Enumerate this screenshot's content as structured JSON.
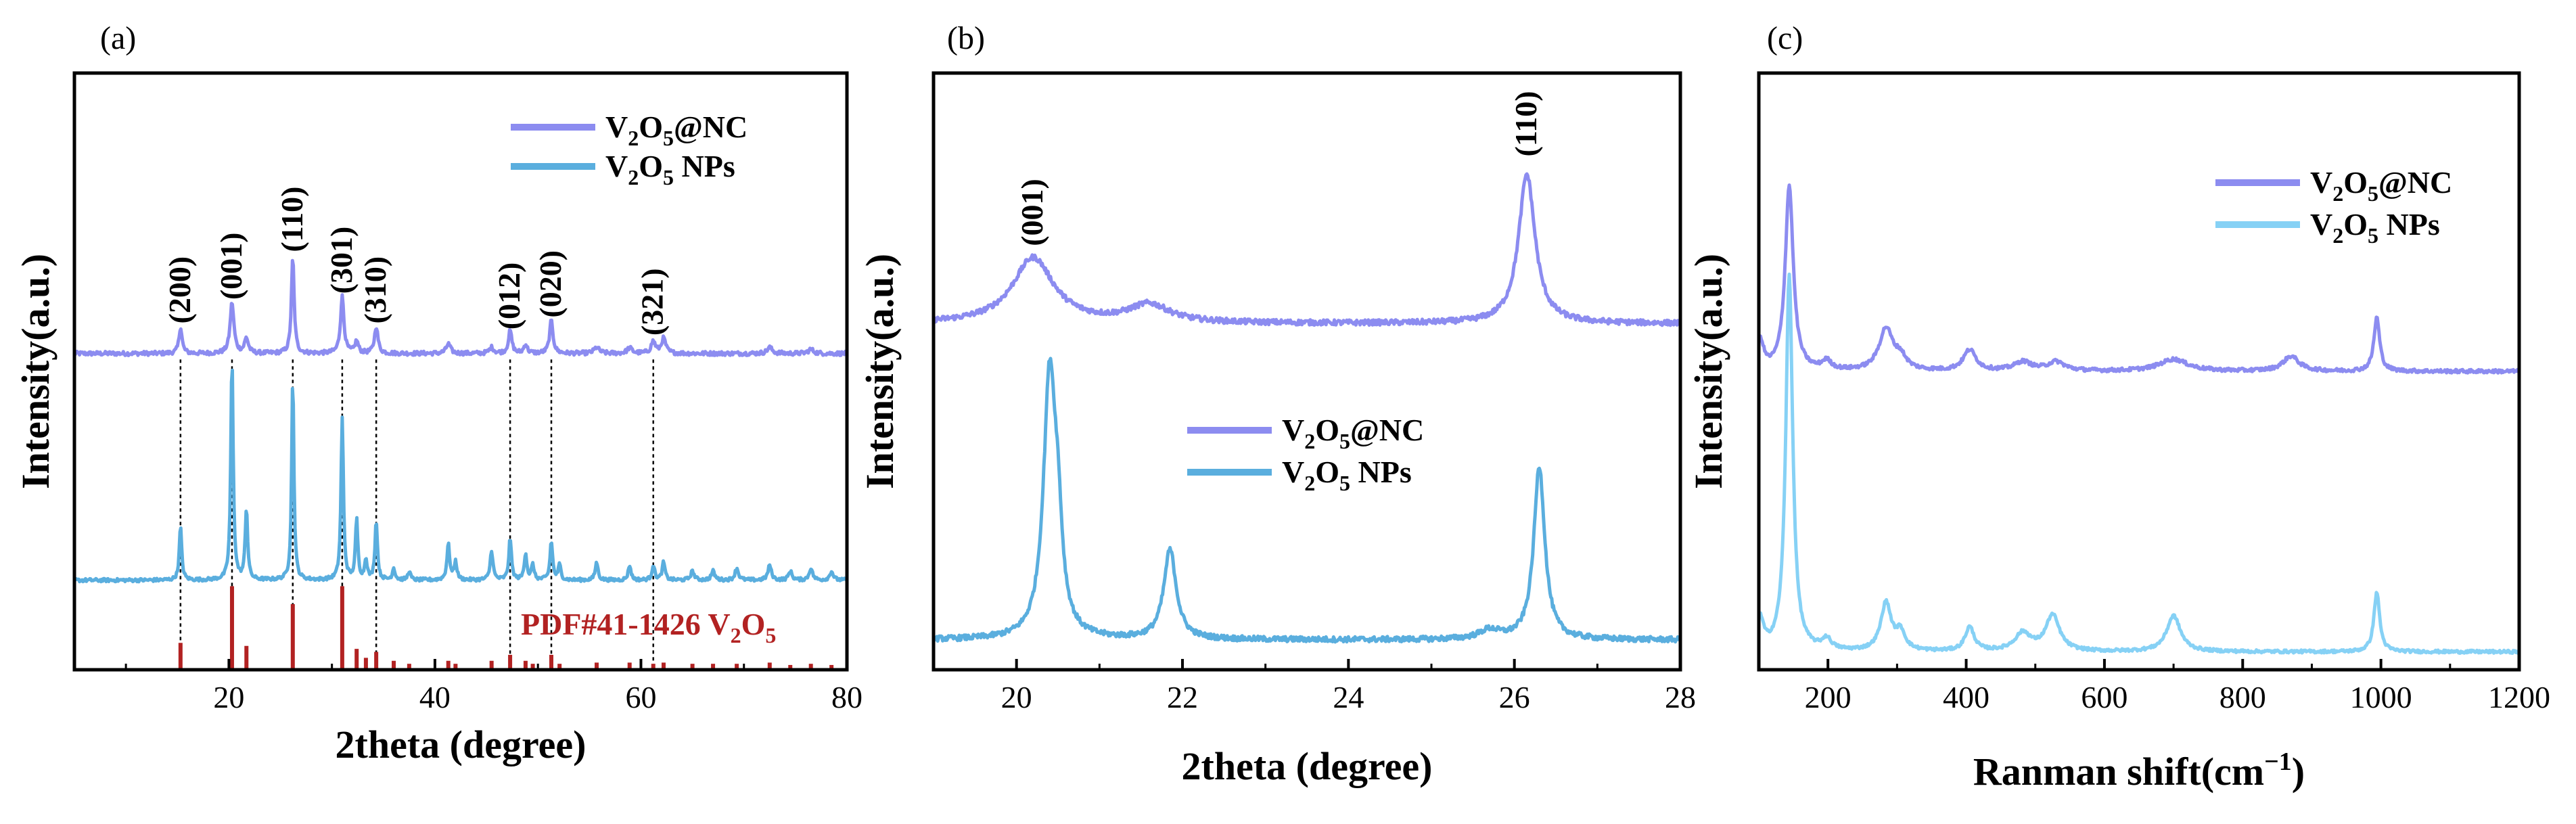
{
  "figure": {
    "panels": [
      "(a)",
      "(b)",
      "(c)"
    ]
  },
  "colors": {
    "nc": "#8c8cf0",
    "nps_a": "#5aaede",
    "nps_b": "#5aaede",
    "nps_c": "#86d1f5",
    "pdf": "#b22222",
    "text": "#000000"
  },
  "chart_data": [
    {
      "type": "line",
      "panel": "(a)",
      "title": "",
      "xlabel": "2theta (degree)",
      "ylabel": "Intensity(a.u.)",
      "xlim": [
        5,
        80
      ],
      "ylim": [
        0,
        100
      ],
      "xticks": [
        20,
        40,
        60,
        80
      ],
      "yticks": "none",
      "series": [
        {
          "name": "V2O5@NC",
          "legend_main": "V",
          "legend_sub1": "2",
          "legend_mid": "O",
          "legend_sub2": "5",
          "legend_end": "@NC",
          "baseline": 53,
          "noise": 0.35,
          "peaks": [
            [
              15.3,
              4.4,
              0.18
            ],
            [
              20.3,
              8.5,
              0.22
            ],
            [
              21.7,
              2.5,
              0.22
            ],
            [
              26.2,
              16.0,
              0.16
            ],
            [
              31.0,
              9.5,
              0.2
            ],
            [
              32.4,
              2.0,
              0.2
            ],
            [
              34.3,
              4.5,
              0.2
            ],
            [
              41.3,
              1.6,
              0.25
            ],
            [
              45.5,
              1.0,
              0.25
            ],
            [
              47.3,
              3.8,
              0.2
            ],
            [
              48.8,
              1.5,
              0.2
            ],
            [
              51.3,
              5.5,
              0.2
            ],
            [
              55.7,
              1.0,
              0.3
            ],
            [
              58.9,
              0.9,
              0.3
            ],
            [
              61.2,
              2.0,
              0.25
            ],
            [
              62.2,
              2.5,
              0.25
            ],
            [
              72.5,
              1.0,
              0.3
            ],
            [
              76.5,
              0.7,
              0.3
            ]
          ]
        },
        {
          "name": "V2O5 NPs",
          "legend_main": "V",
          "legend_sub1": "2",
          "legend_mid": "O",
          "legend_sub2": "5",
          "legend_end": " NPs",
          "baseline": 15,
          "noise": 0.28,
          "peaks": [
            [
              15.3,
              9.0,
              0.14
            ],
            [
              20.3,
              37.0,
              0.14
            ],
            [
              21.7,
              12.0,
              0.14
            ],
            [
              26.2,
              34.0,
              0.13
            ],
            [
              31.0,
              27.0,
              0.14
            ],
            [
              32.4,
              10.0,
              0.14
            ],
            [
              33.3,
              3.5,
              0.14
            ],
            [
              34.3,
              10.0,
              0.14
            ],
            [
              36.0,
              2.0,
              0.15
            ],
            [
              37.5,
              1.5,
              0.15
            ],
            [
              41.3,
              6.0,
              0.16
            ],
            [
              42.0,
              3.0,
              0.16
            ],
            [
              45.5,
              5.0,
              0.16
            ],
            [
              47.3,
              7.0,
              0.15
            ],
            [
              48.8,
              4.5,
              0.15
            ],
            [
              49.5,
              2.5,
              0.15
            ],
            [
              51.3,
              6.5,
              0.15
            ],
            [
              52.1,
              2.5,
              0.15
            ],
            [
              55.7,
              3.0,
              0.16
            ],
            [
              58.9,
              2.5,
              0.16
            ],
            [
              61.2,
              2.5,
              0.16
            ],
            [
              62.2,
              3.0,
              0.16
            ],
            [
              65.0,
              1.5,
              0.2
            ],
            [
              67.0,
              1.5,
              0.2
            ],
            [
              69.3,
              2.0,
              0.2
            ],
            [
              72.5,
              2.5,
              0.2
            ],
            [
              74.5,
              1.5,
              0.2
            ],
            [
              76.5,
              2.0,
              0.2
            ],
            [
              78.5,
              1.5,
              0.2
            ]
          ]
        }
      ],
      "reference": {
        "name": "PDF#41-1426 V2O5",
        "label_main": "PDF#41-1426 V",
        "label_sub1": "2",
        "label_mid": "O",
        "label_sub2": "5",
        "base": 0,
        "sticks": [
          [
            15.3,
            4.5
          ],
          [
            20.3,
            14.0
          ],
          [
            21.7,
            4.0
          ],
          [
            26.2,
            11.0
          ],
          [
            31.0,
            14.0
          ],
          [
            32.4,
            3.5
          ],
          [
            33.3,
            2.0
          ],
          [
            34.3,
            3.0
          ],
          [
            36.0,
            1.5
          ],
          [
            37.5,
            1.0
          ],
          [
            41.3,
            1.5
          ],
          [
            42.0,
            1.0
          ],
          [
            45.5,
            1.5
          ],
          [
            47.3,
            2.5
          ],
          [
            48.8,
            1.5
          ],
          [
            49.5,
            1.0
          ],
          [
            51.3,
            2.5
          ],
          [
            52.1,
            1.0
          ],
          [
            55.7,
            1.2
          ],
          [
            58.9,
            1.2
          ],
          [
            61.2,
            1.0
          ],
          [
            62.2,
            1.2
          ],
          [
            65.0,
            1.0
          ],
          [
            67.0,
            1.0
          ],
          [
            69.3,
            1.0
          ],
          [
            72.5,
            1.2
          ],
          [
            74.5,
            0.8
          ],
          [
            76.5,
            1.0
          ],
          [
            78.5,
            0.8
          ]
        ]
      },
      "peak_labels": [
        {
          "text": "(200)",
          "x": 15.3,
          "y_top": 58
        },
        {
          "text": "(001)",
          "x": 20.3,
          "y_top": 62
        },
        {
          "text": "(110)",
          "x": 26.2,
          "y_top": 70
        },
        {
          "text": "(301)",
          "x": 31.0,
          "y_top": 63
        },
        {
          "text": "(310)",
          "x": 34.3,
          "y_top": 58
        },
        {
          "text": "(012)",
          "x": 47.3,
          "y_top": 57
        },
        {
          "text": "(020)",
          "x": 51.3,
          "y_top": 59
        },
        {
          "text": "(321)",
          "x": 61.2,
          "y_top": 56
        }
      ],
      "dashed_x": [
        15.3,
        20.3,
        26.2,
        31.0,
        34.3,
        47.3,
        51.3,
        61.2
      ],
      "legend_position": "top-right",
      "reference_label_position": "bottom-right"
    },
    {
      "type": "line",
      "panel": "(b)",
      "title": "",
      "xlabel": "2theta (degree)",
      "ylabel": "Intensity(a.u.)",
      "xlim": [
        19,
        28
      ],
      "ylim": [
        0,
        100
      ],
      "xticks": [
        20,
        22,
        24,
        26,
        28
      ],
      "yticks": "none",
      "series": [
        {
          "name": "V2O5@NC",
          "legend_main": "V",
          "legend_sub1": "2",
          "legend_mid": "O",
          "legend_sub2": "5",
          "legend_end": "@NC",
          "baseline": 58,
          "noise": 0.45,
          "peaks": [
            [
              20.2,
              11.0,
              0.3
            ],
            [
              21.6,
              3.0,
              0.3
            ],
            [
              26.15,
              25.0,
              0.12
            ]
          ]
        },
        {
          "name": "V2O5 NPs",
          "legend_main": "V",
          "legend_sub1": "2",
          "legend_mid": "O",
          "legend_sub2": "5",
          "legend_end": " NPs",
          "baseline": 5,
          "noise": 0.45,
          "peaks": [
            [
              20.4,
              44.0,
              0.09
            ],
            [
              20.5,
              12.0,
              0.06
            ],
            [
              21.85,
              15.0,
              0.09
            ],
            [
              25.7,
              1.5,
              0.15
            ],
            [
              26.3,
              29.0,
              0.08
            ]
          ]
        }
      ],
      "peak_labels": [
        {
          "text": "(001)",
          "x": 20.2,
          "y_top": 71
        },
        {
          "text": "(110)",
          "x": 26.15,
          "y_top": 86
        }
      ],
      "legend_position": "center"
    },
    {
      "type": "line",
      "panel": "(c)",
      "title": "",
      "xlabel": "Ranman shift(cm−1)",
      "xlabel_main": "Ranman shift(cm",
      "xlabel_sup": "−1",
      "xlabel_end": ")",
      "ylabel": "Intensity(a.u.)",
      "xlim": [
        100,
        1200
      ],
      "ylim": [
        0,
        100
      ],
      "xticks": [
        200,
        400,
        600,
        800,
        1000,
        1200
      ],
      "yticks": "none",
      "series": [
        {
          "name": "V2O5@NC",
          "legend_main": "V",
          "legend_sub1": "2",
          "legend_mid": "O",
          "legend_sub2": "5",
          "legend_end": "@NC",
          "baseline": 50,
          "noise": 0.3,
          "peaks": [
            [
              102,
              5.0,
              6
            ],
            [
              144,
              31.0,
              7
            ],
            [
              198,
              1.5,
              8
            ],
            [
              284,
              7.0,
              12
            ],
            [
              305,
              2.0,
              10
            ],
            [
              405,
              3.5,
              11
            ],
            [
              482,
              1.5,
              15
            ],
            [
              530,
              1.5,
              15
            ],
            [
              700,
              2.0,
              25
            ],
            [
              870,
              2.5,
              14
            ],
            [
              994,
              9.0,
              5
            ]
          ]
        },
        {
          "name": "V2O5 NPs",
          "legend_main": "V",
          "legend_sub1": "2",
          "legend_mid": "O",
          "legend_sub2": "5",
          "legend_end": " NPs",
          "baseline": 3,
          "noise": 0.25,
          "peaks": [
            [
              102,
              5.0,
              6
            ],
            [
              144,
              63.0,
              6
            ],
            [
              198,
              1.8,
              8
            ],
            [
              284,
              8.0,
              9
            ],
            [
              305,
              3.0,
              8
            ],
            [
              405,
              4.0,
              8
            ],
            [
              482,
              3.0,
              14
            ],
            [
              525,
              6.0,
              12
            ],
            [
              700,
              6.0,
              12
            ],
            [
              994,
              10.0,
              5
            ]
          ]
        }
      ],
      "legend_position": "top-right"
    }
  ]
}
